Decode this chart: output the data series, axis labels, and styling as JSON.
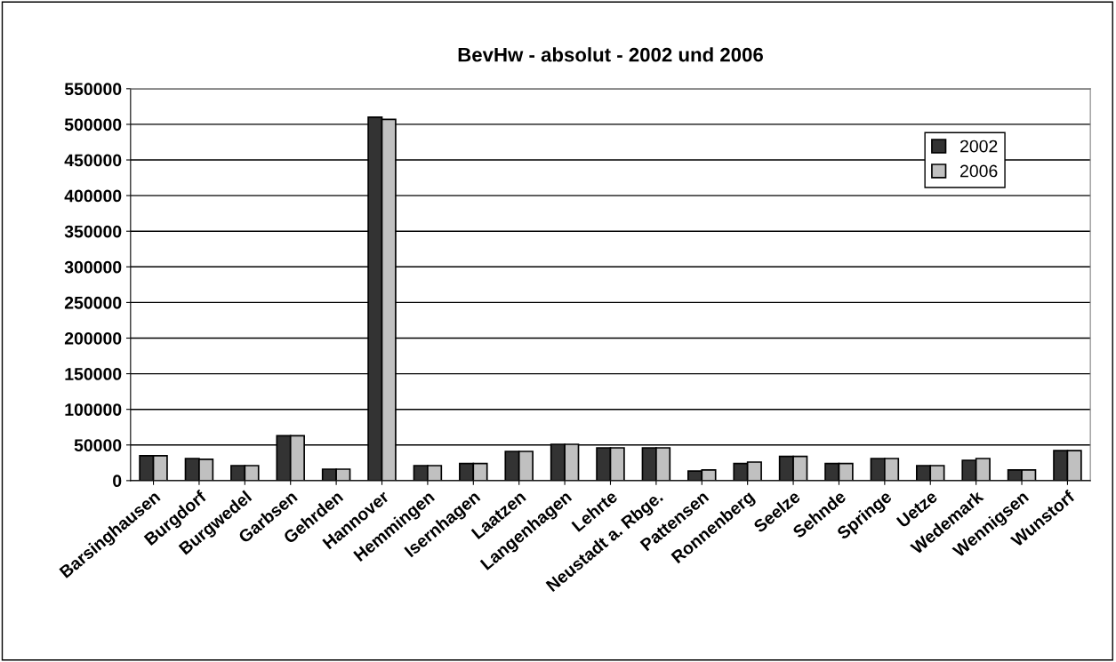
{
  "chart_data": {
    "type": "bar",
    "title": "BevHw - absolut - 2002 und 2006",
    "categories": [
      "Barsinghausen",
      "Burgdorf",
      "Burgwedel",
      "Garbsen",
      "Gehrden",
      "Hannover",
      "Hemmingen",
      "Isernhagen",
      "Laatzen",
      "Langenhagen",
      "Lehrte",
      "Neustadt a. Rbge.",
      "Pattensen",
      "Ronnenberg",
      "Seelze",
      "Sehnde",
      "Springe",
      "Uetze",
      "Wedemark",
      "Wennigsen",
      "Wunstorf"
    ],
    "series": [
      {
        "name": "2002",
        "color": "#333333",
        "values": [
          35000,
          31000,
          21000,
          63000,
          16000,
          510000,
          21000,
          24000,
          41000,
          51000,
          46000,
          46000,
          13500,
          24000,
          34000,
          24000,
          31000,
          21000,
          28500,
          15000,
          42000
        ]
      },
      {
        "name": "2006",
        "color": "#c0c0c0",
        "values": [
          35000,
          30000,
          21000,
          63000,
          16000,
          507000,
          21000,
          24000,
          41000,
          51000,
          46000,
          46000,
          15000,
          26000,
          34000,
          24000,
          31000,
          21000,
          31000,
          15000,
          42000
        ]
      }
    ],
    "ylim": [
      0,
      550000
    ],
    "yticks": [
      0,
      50000,
      100000,
      150000,
      200000,
      250000,
      300000,
      350000,
      400000,
      450000,
      500000,
      550000
    ],
    "grid": "y",
    "legend": "top right"
  }
}
